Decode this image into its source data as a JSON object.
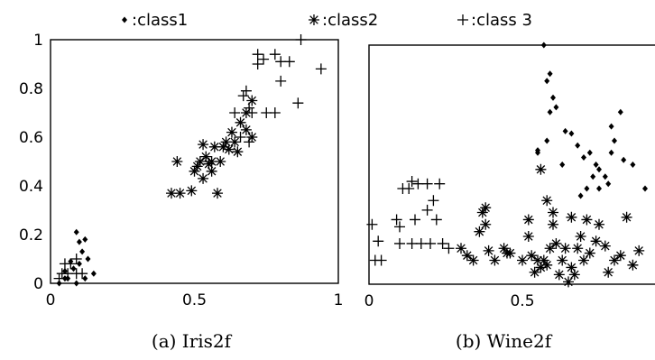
{
  "legend": [
    {
      "marker": "diamond",
      "label": ":class1"
    },
    {
      "marker": "asterisk",
      "label": ":class2"
    },
    {
      "marker": "plus",
      "label": ":class 3"
    }
  ],
  "chart_data": [
    {
      "type": "scatter",
      "title": "",
      "caption": "(a) Iris2f",
      "xlim": [
        0,
        1
      ],
      "ylim": [
        0,
        1
      ],
      "xticks": [
        0,
        0.5,
        1
      ],
      "xtick_labels": [
        "0",
        "0.5",
        "1"
      ],
      "yticks": [
        0,
        0.2,
        0.4,
        0.6,
        0.8,
        1
      ],
      "ytick_labels": [
        "0",
        "0.2",
        "0.4",
        "0.6",
        "0.8",
        "1"
      ],
      "series": [
        {
          "marker": "diamond",
          "points": [
            [
              0.03,
              0.0
            ],
            [
              0.06,
              0.02
            ],
            [
              0.09,
              0.0
            ],
            [
              0.12,
              0.02
            ],
            [
              0.05,
              0.05
            ],
            [
              0.08,
              0.06
            ],
            [
              0.1,
              0.08
            ],
            [
              0.13,
              0.1
            ],
            [
              0.11,
              0.13
            ],
            [
              0.1,
              0.17
            ],
            [
              0.09,
              0.21
            ],
            [
              0.12,
              0.18
            ],
            [
              0.15,
              0.04
            ],
            [
              0.07,
              0.09
            ],
            [
              0.05,
              0.02
            ]
          ]
        },
        {
          "marker": "plus",
          "points": [
            [
              0.03,
              0.02
            ],
            [
              0.04,
              0.04
            ],
            [
              0.06,
              0.04
            ],
            [
              0.09,
              0.04
            ],
            [
              0.11,
              0.04
            ],
            [
              0.05,
              0.08
            ],
            [
              0.07,
              0.08
            ],
            [
              0.09,
              0.1
            ]
          ]
        },
        {
          "marker": "asterisk",
          "points": [
            [
              0.42,
              0.37
            ],
            [
              0.44,
              0.5
            ],
            [
              0.45,
              0.37
            ],
            [
              0.5,
              0.46
            ],
            [
              0.51,
              0.48
            ],
            [
              0.52,
              0.5
            ],
            [
              0.54,
              0.52
            ],
            [
              0.53,
              0.57
            ],
            [
              0.55,
              0.49
            ],
            [
              0.56,
              0.46
            ],
            [
              0.56,
              0.5
            ],
            [
              0.57,
              0.56
            ],
            [
              0.58,
              0.37
            ],
            [
              0.59,
              0.5
            ],
            [
              0.6,
              0.56
            ],
            [
              0.61,
              0.58
            ],
            [
              0.62,
              0.55
            ],
            [
              0.63,
              0.62
            ],
            [
              0.64,
              0.58
            ],
            [
              0.65,
              0.54
            ],
            [
              0.66,
              0.66
            ],
            [
              0.68,
              0.63
            ],
            [
              0.68,
              0.7
            ],
            [
              0.7,
              0.75
            ],
            [
              0.7,
              0.6
            ],
            [
              0.53,
              0.43
            ],
            [
              0.49,
              0.38
            ]
          ]
        },
        {
          "marker": "plus",
          "points": [
            [
              0.64,
              0.7
            ],
            [
              0.66,
              0.6
            ],
            [
              0.67,
              0.77
            ],
            [
              0.68,
              0.79
            ],
            [
              0.69,
              0.72
            ],
            [
              0.69,
              0.58
            ],
            [
              0.7,
              0.7
            ],
            [
              0.72,
              0.9
            ],
            [
              0.74,
              0.92
            ],
            [
              0.72,
              0.94
            ],
            [
              0.78,
              0.94
            ],
            [
              0.8,
              0.91
            ],
            [
              0.83,
              0.91
            ],
            [
              0.8,
              0.83
            ],
            [
              0.75,
              0.7
            ],
            [
              0.78,
              0.7
            ],
            [
              0.86,
              0.74
            ],
            [
              0.87,
              1.0
            ],
            [
              0.94,
              0.88
            ]
          ]
        }
      ]
    },
    {
      "type": "scatter",
      "title": "",
      "caption": "(b) Wine2f",
      "xlim": [
        0,
        1
      ],
      "ylim": [
        0,
        1
      ],
      "xticks": [
        0,
        0.5
      ],
      "xtick_labels": [
        "0",
        "0.5"
      ],
      "yticks": [],
      "ytick_labels": [],
      "series": [
        {
          "marker": "diamond",
          "points": [
            [
              0.57,
              1.0
            ],
            [
              0.59,
              0.88
            ],
            [
              0.58,
              0.85
            ],
            [
              0.6,
              0.78
            ],
            [
              0.59,
              0.72
            ],
            [
              0.61,
              0.74
            ],
            [
              0.55,
              0.55
            ],
            [
              0.58,
              0.6
            ],
            [
              0.63,
              0.5
            ],
            [
              0.64,
              0.64
            ],
            [
              0.66,
              0.63
            ],
            [
              0.68,
              0.58
            ],
            [
              0.7,
              0.53
            ],
            [
              0.72,
              0.55
            ],
            [
              0.74,
              0.5
            ],
            [
              0.75,
              0.48
            ],
            [
              0.77,
              0.45
            ],
            [
              0.75,
              0.4
            ],
            [
              0.73,
              0.45
            ],
            [
              0.79,
              0.66
            ],
            [
              0.82,
              0.72
            ],
            [
              0.83,
              0.52
            ],
            [
              0.8,
              0.6
            ],
            [
              0.79,
              0.55
            ],
            [
              0.78,
              0.42
            ],
            [
              0.86,
              0.5
            ],
            [
              0.9,
              0.4
            ],
            [
              0.71,
              0.4
            ],
            [
              0.55,
              0.56
            ],
            [
              0.69,
              0.37
            ]
          ]
        },
        {
          "marker": "plus",
          "points": [
            [
              0.01,
              0.25
            ],
            [
              0.03,
              0.18
            ],
            [
              0.02,
              0.1
            ],
            [
              0.04,
              0.1
            ],
            [
              0.09,
              0.27
            ],
            [
              0.1,
              0.24
            ],
            [
              0.1,
              0.17
            ],
            [
              0.11,
              0.4
            ],
            [
              0.13,
              0.4
            ],
            [
              0.14,
              0.43
            ],
            [
              0.15,
              0.27
            ],
            [
              0.16,
              0.42
            ],
            [
              0.17,
              0.17
            ],
            [
              0.19,
              0.42
            ],
            [
              0.19,
              0.31
            ],
            [
              0.21,
              0.35
            ],
            [
              0.22,
              0.27
            ],
            [
              0.23,
              0.42
            ],
            [
              0.24,
              0.17
            ],
            [
              0.26,
              0.15
            ],
            [
              0.14,
              0.17
            ],
            [
              0.2,
              0.17
            ]
          ]
        },
        {
          "marker": "asterisk",
          "points": [
            [
              0.36,
              0.22
            ],
            [
              0.37,
              0.3
            ],
            [
              0.38,
              0.32
            ],
            [
              0.38,
              0.25
            ],
            [
              0.3,
              0.15
            ],
            [
              0.32,
              0.12
            ],
            [
              0.34,
              0.1
            ],
            [
              0.39,
              0.14
            ],
            [
              0.41,
              0.1
            ],
            [
              0.44,
              0.15
            ],
            [
              0.46,
              0.13
            ],
            [
              0.5,
              0.1
            ],
            [
              0.52,
              0.2
            ],
            [
              0.53,
              0.12
            ],
            [
              0.54,
              0.05
            ],
            [
              0.55,
              0.1
            ],
            [
              0.56,
              0.07
            ],
            [
              0.57,
              0.1
            ],
            [
              0.58,
              0.08
            ],
            [
              0.59,
              0.15
            ],
            [
              0.6,
              0.25
            ],
            [
              0.61,
              0.17
            ],
            [
              0.62,
              0.04
            ],
            [
              0.63,
              0.1
            ],
            [
              0.64,
              0.15
            ],
            [
              0.65,
              0.01
            ],
            [
              0.66,
              0.07
            ],
            [
              0.67,
              0.04
            ],
            [
              0.68,
              0.15
            ],
            [
              0.69,
              0.2
            ],
            [
              0.7,
              0.1
            ],
            [
              0.71,
              0.27
            ],
            [
              0.72,
              0.13
            ],
            [
              0.74,
              0.18
            ],
            [
              0.75,
              0.25
            ],
            [
              0.77,
              0.16
            ],
            [
              0.78,
              0.05
            ],
            [
              0.8,
              0.1
            ],
            [
              0.82,
              0.12
            ],
            [
              0.84,
              0.28
            ],
            [
              0.86,
              0.08
            ],
            [
              0.88,
              0.14
            ],
            [
              0.52,
              0.27
            ],
            [
              0.58,
              0.35
            ],
            [
              0.66,
              0.28
            ],
            [
              0.56,
              0.48
            ],
            [
              0.45,
              0.13
            ],
            [
              0.6,
              0.3
            ]
          ]
        }
      ]
    }
  ]
}
